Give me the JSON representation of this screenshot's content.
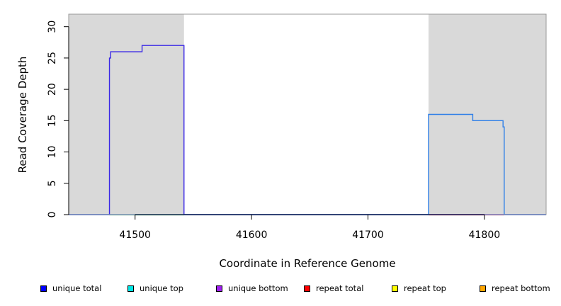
{
  "chart_data": {
    "type": "line",
    "title": "",
    "xlabel": "Coordinate in Reference Genome",
    "ylabel": "Read Coverage Depth",
    "xlim": [
      41443,
      41853
    ],
    "ylim": [
      0,
      32
    ],
    "x_ticks": [
      41500,
      41600,
      41700,
      41800
    ],
    "y_ticks": [
      0,
      5,
      10,
      15,
      20,
      25,
      30
    ],
    "shaded_regions": [
      [
        41443,
        41542
      ],
      [
        41752,
        41853
      ]
    ],
    "shade_color": "#d9d9d9",
    "top_line_y": 32,
    "series": [
      {
        "name": "unique total",
        "color": "#3a28e6",
        "points": [
          [
            41443,
            0
          ],
          [
            41478,
            0
          ],
          [
            41478,
            25
          ],
          [
            41479,
            25
          ],
          [
            41479,
            26
          ],
          [
            41506,
            26
          ],
          [
            41506,
            27
          ],
          [
            41542,
            27
          ],
          [
            41542,
            0
          ],
          [
            41853,
            0
          ]
        ]
      },
      {
        "name": "repeat total",
        "color": "#2f7fe8",
        "points": [
          [
            41443,
            0
          ],
          [
            41752,
            0
          ],
          [
            41752,
            16
          ],
          [
            41790,
            16
          ],
          [
            41790,
            15
          ],
          [
            41816,
            15
          ],
          [
            41816,
            14
          ],
          [
            41817,
            14
          ],
          [
            41817,
            0
          ],
          [
            41853,
            0
          ]
        ]
      }
    ],
    "baseline_highlights": [
      {
        "color": "#8fd48f",
        "x_range": [
          41478,
          41542
        ]
      },
      {
        "color": "#e88a8a",
        "x_range": [
          41752,
          41817
        ]
      }
    ],
    "legend": {
      "placement": "bottom",
      "items": [
        {
          "label": "unique total",
          "color": "#0000ff"
        },
        {
          "label": "unique top",
          "color": "#00e5e5"
        },
        {
          "label": "unique bottom",
          "color": "#a020f0"
        },
        {
          "label": "repeat total",
          "color": "#ff0000"
        },
        {
          "label": "repeat top",
          "color": "#ffff00"
        },
        {
          "label": "repeat bottom",
          "color": "#ffa500"
        }
      ]
    }
  }
}
